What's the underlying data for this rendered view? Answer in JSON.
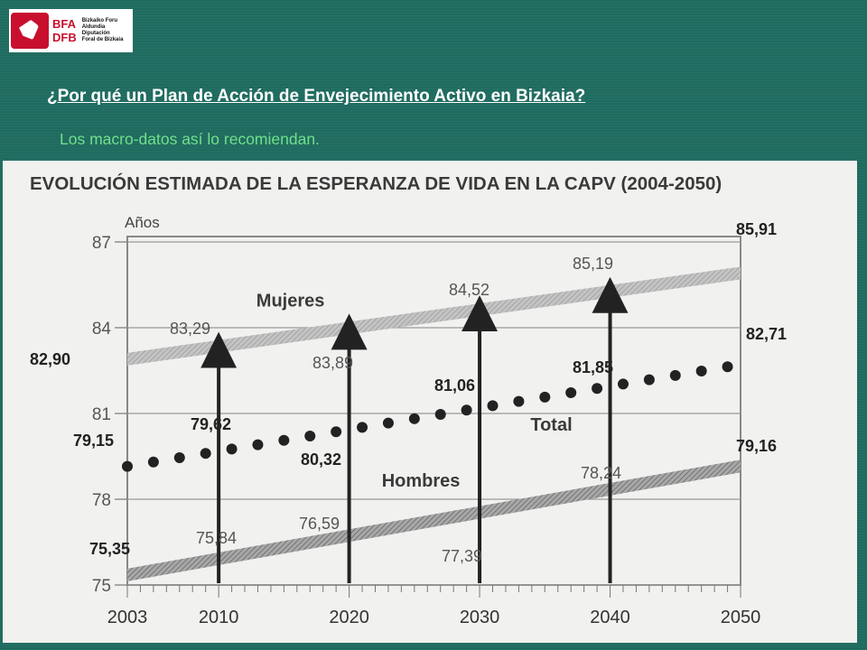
{
  "logo": {
    "abbr_top": "BFA",
    "abbr_bottom": "DFB",
    "name_lines": [
      "Bizkaiko Foru",
      "Aldundia",
      "Diputación",
      "Foral de Bizkaia"
    ]
  },
  "slide": {
    "title": "¿Por qué un Plan de Acción de Envejecimiento Activo en Bizkaia?",
    "subtitle": "Los macro-datos así lo recomiendan."
  },
  "colors": {
    "background": "#1f6b5f",
    "title": "#ffffff",
    "subtitle": "#6fe08a",
    "chart_bg": "#f1f1ef",
    "mujeres_band": "#b5b5b5",
    "hombres_band": "#8a8a8a",
    "total_dots": "#222222"
  },
  "chart_data": {
    "type": "line",
    "title": "EVOLUCIÓN ESTIMADA DE LA ESPERANZA DE VIDA EN LA CAPV (2004-2050)",
    "ylabel": "Años",
    "ylim": [
      75,
      87
    ],
    "xlim": [
      2003,
      2050
    ],
    "y_ticks": [
      "75",
      "78",
      "81",
      "84",
      "87"
    ],
    "x_ticks": [
      "2003",
      "2010",
      "2020",
      "2030",
      "2040",
      "2050"
    ],
    "grid": true,
    "series": [
      {
        "name": "Mujeres",
        "style": "band",
        "points": [
          [
            2003,
            82.9
          ],
          [
            2050,
            85.91
          ]
        ]
      },
      {
        "name": "Total",
        "style": "dots",
        "points": [
          [
            2003,
            79.15
          ],
          [
            2050,
            82.71
          ]
        ]
      },
      {
        "name": "Hombres",
        "style": "band",
        "points": [
          [
            2003,
            75.35
          ],
          [
            2050,
            79.16
          ]
        ]
      }
    ],
    "arrow_years": [
      2010,
      2020,
      2030,
      2040
    ],
    "annotations": [
      {
        "text": "85,91",
        "x": 2050,
        "y": 85.91,
        "bold": true
      },
      {
        "text": "82,90",
        "x": 2003,
        "y": 82.9,
        "bold": true
      },
      {
        "text": "83,29",
        "x": 2010,
        "y": 83.29,
        "bold": false
      },
      {
        "text": "83,89",
        "x": 2020,
        "y": 83.89,
        "bold": false
      },
      {
        "text": "84,52",
        "x": 2030,
        "y": 84.52,
        "bold": false
      },
      {
        "text": "85,19",
        "x": 2040,
        "y": 85.19,
        "bold": false
      },
      {
        "text": "82,71",
        "x": 2050,
        "y": 82.71,
        "bold": true
      },
      {
        "text": "79,15",
        "x": 2003,
        "y": 79.15,
        "bold": true
      },
      {
        "text": "79,62",
        "x": 2010,
        "y": 79.62,
        "bold": true
      },
      {
        "text": "80,32",
        "x": 2020,
        "y": 80.32,
        "bold": true
      },
      {
        "text": "81,06",
        "x": 2030,
        "y": 81.06,
        "bold": true
      },
      {
        "text": "81,85",
        "x": 2040,
        "y": 81.85,
        "bold": true
      },
      {
        "text": "79,16",
        "x": 2050,
        "y": 79.16,
        "bold": true
      },
      {
        "text": "75,35",
        "x": 2003,
        "y": 75.35,
        "bold": true
      },
      {
        "text": "75,84",
        "x": 2010,
        "y": 75.84,
        "bold": false
      },
      {
        "text": "76,59",
        "x": 2020,
        "y": 76.59,
        "bold": false
      },
      {
        "text": "77,39",
        "x": 2030,
        "y": 77.39,
        "bold": false
      },
      {
        "text": "78,24",
        "x": 2040,
        "y": 78.24,
        "bold": false
      }
    ]
  }
}
